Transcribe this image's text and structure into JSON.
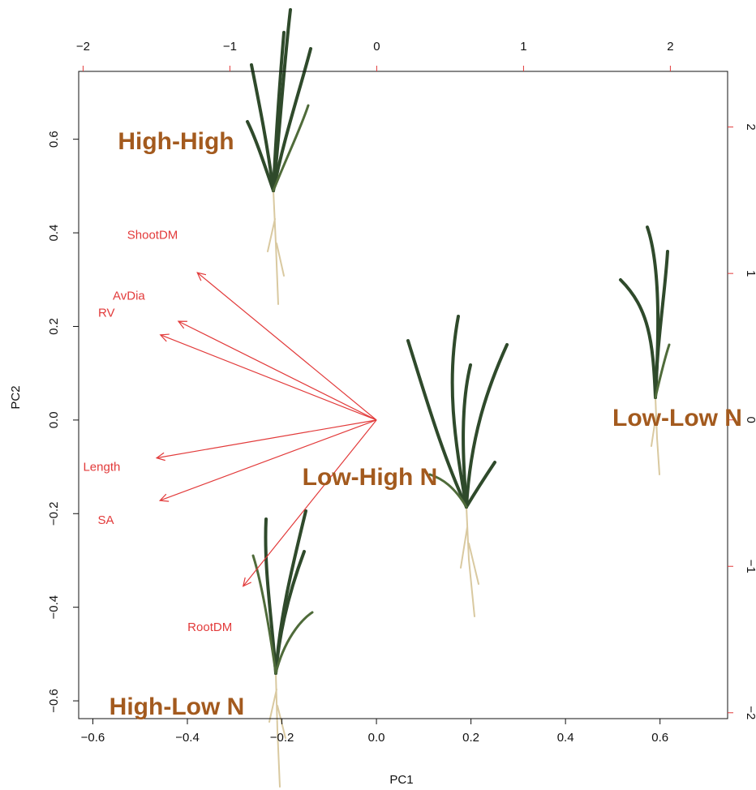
{
  "chart_data": {
    "type": "biplot",
    "xlabel": "PC1",
    "ylabel": "PC2",
    "xlim": [
      -0.63,
      0.743
    ],
    "ylim": [
      -0.638,
      0.745
    ],
    "xticks": [
      {
        "value": -0.6,
        "label": "−0.6"
      },
      {
        "value": -0.4,
        "label": "−0.4"
      },
      {
        "value": -0.2,
        "label": "−0.2"
      },
      {
        "value": 0,
        "label": "0.0"
      },
      0.2,
      0.4,
      0.6
    ],
    "yticks": [
      {
        "value": -0.6,
        "label": "−0.6"
      },
      {
        "value": -0.4,
        "label": "−0.4"
      },
      {
        "value": -0.2,
        "label": "−0.2"
      },
      {
        "value": 0,
        "label": "0.0"
      },
      0.2,
      0.4,
      0.6
    ],
    "x2lim": [
      -2.03,
      2.39
    ],
    "x2ticks": [
      {
        "value": -2,
        "label": "−2"
      },
      {
        "value": -1,
        "label": "−1"
      },
      0,
      1,
      2
    ],
    "y2lim": [
      -2.04,
      2.38
    ],
    "y2ticks": [
      {
        "value": -2,
        "label": "−2"
      },
      {
        "value": -1,
        "label": "−1"
      },
      0,
      1,
      2
    ],
    "loadings": {
      "color": "#e23a3a",
      "labels": [
        "ShootDM",
        "AvDia",
        "RV",
        "Length",
        "SA",
        "RootDM"
      ],
      "x": [
        -0.379,
        -0.419,
        -0.457,
        -0.465,
        -0.458,
        -0.282
      ],
      "y": [
        0.315,
        0.211,
        0.182,
        -0.081,
        -0.172,
        -0.355
      ]
    },
    "annotations": {
      "color": "#a35a1e",
      "texts": [
        "High-High",
        "Low-High N",
        "Low-Low N",
        "High-Low N"
      ]
    }
  }
}
